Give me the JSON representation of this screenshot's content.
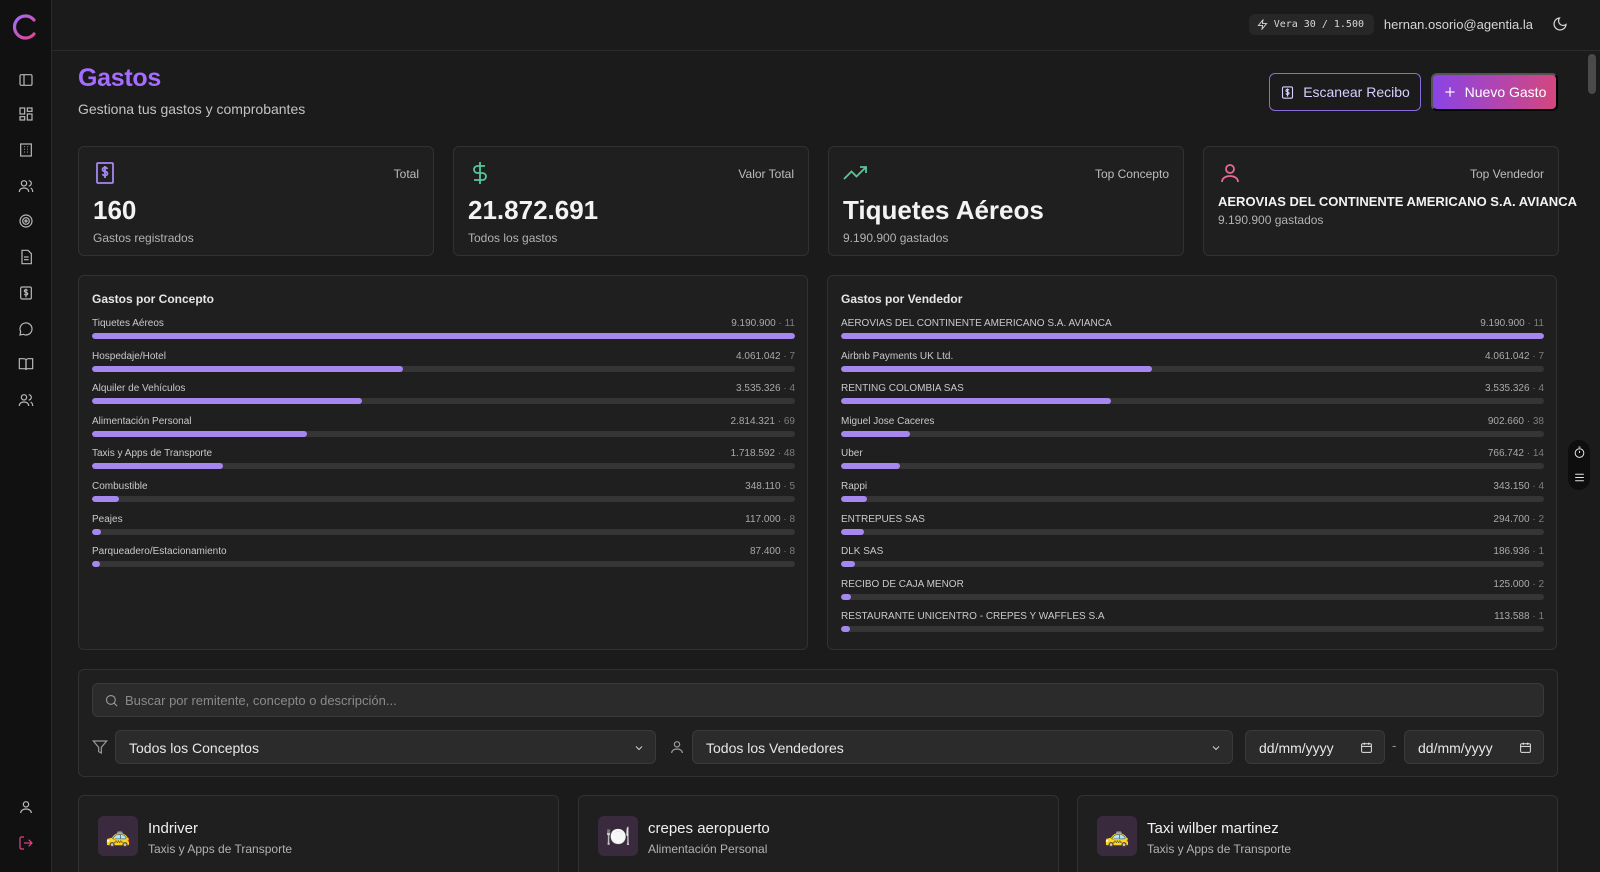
{
  "topbar": {
    "credits": "Vera 30 / 1.500",
    "user_email": "hernan.osorio@agentia.la"
  },
  "header": {
    "title": "Gastos",
    "subtitle": "Gestiona tus gastos y comprobantes",
    "scan_button": "Escanear Recibo",
    "new_button": "Nuevo Gasto"
  },
  "colors": {
    "accent": "#a46cff",
    "bar_fill": "#a687f0",
    "bar_track": "#353535",
    "green_icon": "#57c79a",
    "pink_icon": "#e86a92"
  },
  "stats": [
    {
      "label": "Total",
      "value": "160",
      "sub": "Gastos registrados",
      "icon": "receipt-icon"
    },
    {
      "label": "Valor Total",
      "value": "21.872.691",
      "sub": "Todos los gastos",
      "icon": "dollar-icon"
    },
    {
      "label": "Top Concepto",
      "value": "Tiquetes Aéreos",
      "sub": "9.190.900 gastados",
      "icon": "trending-up-icon"
    },
    {
      "label": "Top Vendedor",
      "value": "AEROVIAS DEL CONTINENTE AMERICANO S.A. AVIANCA",
      "sub": "9.190.900 gastados",
      "icon": "user-icon"
    }
  ],
  "concepts_panel": {
    "title": "Gastos por Concepto",
    "max": 9190900,
    "items": [
      {
        "name": "Tiquetes Aéreos",
        "amount": "9.190.900",
        "count": "11",
        "value": 9190900
      },
      {
        "name": "Hospedaje/Hotel",
        "amount": "4.061.042",
        "count": "7",
        "value": 4061042
      },
      {
        "name": "Alquiler de Vehículos",
        "amount": "3.535.326",
        "count": "4",
        "value": 3535326
      },
      {
        "name": "Alimentación Personal",
        "amount": "2.814.321",
        "count": "69",
        "value": 2814321
      },
      {
        "name": "Taxis y Apps de Transporte",
        "amount": "1.718.592",
        "count": "48",
        "value": 1718592
      },
      {
        "name": "Combustible",
        "amount": "348.110",
        "count": "5",
        "value": 348110
      },
      {
        "name": "Peajes",
        "amount": "117.000",
        "count": "8",
        "value": 117000
      },
      {
        "name": "Parqueadero/Estacionamiento",
        "amount": "87.400",
        "count": "8",
        "value": 87400
      }
    ]
  },
  "vendors_panel": {
    "title": "Gastos por Vendedor",
    "max": 9190900,
    "items": [
      {
        "name": "AEROVIAS DEL CONTINENTE AMERICANO S.A. AVIANCA",
        "amount": "9.190.900",
        "count": "11",
        "value": 9190900
      },
      {
        "name": "Airbnb Payments UK Ltd.",
        "amount": "4.061.042",
        "count": "7",
        "value": 4061042
      },
      {
        "name": "RENTING COLOMBIA SAS",
        "amount": "3.535.326",
        "count": "4",
        "value": 3535326
      },
      {
        "name": "Miguel Jose Caceres",
        "amount": "902.660",
        "count": "38",
        "value": 902660
      },
      {
        "name": "Uber",
        "amount": "766.742",
        "count": "14",
        "value": 766742
      },
      {
        "name": "Rappi",
        "amount": "343.150",
        "count": "4",
        "value": 343150
      },
      {
        "name": "ENTREPUES SAS",
        "amount": "294.700",
        "count": "2",
        "value": 294700
      },
      {
        "name": "DLK SAS",
        "amount": "186.936",
        "count": "1",
        "value": 186936
      },
      {
        "name": "RECIBO DE CAJA MENOR",
        "amount": "125.000",
        "count": "2",
        "value": 125000
      },
      {
        "name": "RESTAURANTE UNICENTRO - CREPES Y WAFFLES S.A",
        "amount": "113.588",
        "count": "1",
        "value": 113588
      }
    ]
  },
  "filters": {
    "search_placeholder": "Buscar por remitente, concepto o descripción...",
    "concept_select": "Todos los Conceptos",
    "vendor_select": "Todos los Vendedores",
    "date_from": "dd/mm/yyyy",
    "date_separator": "-",
    "date_to": "dd/mm/yyyy"
  },
  "expenses": [
    {
      "title": "Indriver",
      "category": "Taxis y Apps de Transporte",
      "icon": "🚕"
    },
    {
      "title": "crepes aeropuerto",
      "category": "Alimentación Personal",
      "icon": "🍽️"
    },
    {
      "title": "Taxi wilber martinez",
      "category": "Taxis y Apps de Transporte",
      "icon": "🚕"
    }
  ]
}
